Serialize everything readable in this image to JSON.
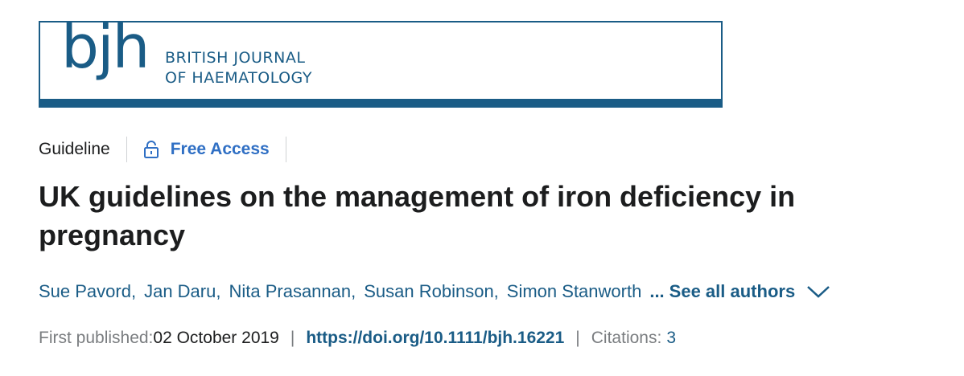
{
  "journal": {
    "logo_mark": "bjh",
    "name_line1": "BRITISH JOURNAL",
    "name_line2": "OF HAEMATOLOGY",
    "brand_color": "#1a5c86"
  },
  "article": {
    "type": "Guideline",
    "access": {
      "icon": "lock-open-icon",
      "label": "Free Access"
    },
    "title": "UK guidelines on the management of iron deficiency in pregnancy",
    "authors": [
      "Sue Pavord,",
      "Jan Daru,",
      "Nita Prasannan,",
      "Susan Robinson,",
      "Simon Stanworth"
    ],
    "authors_ellipsis": "...",
    "see_all_label": "See all authors",
    "first_published_label": "First published:",
    "first_published_date": "02 October 2019",
    "separator": "|",
    "doi": "https://doi.org/10.1111/bjh.16221",
    "citations_label": "Citations:",
    "citations_count": "3"
  }
}
